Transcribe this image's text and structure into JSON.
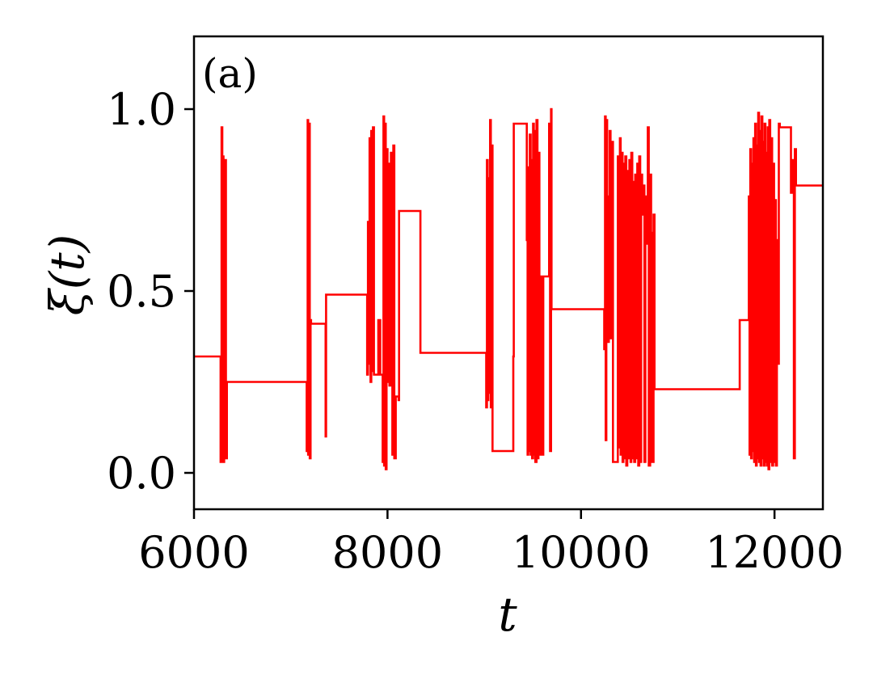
{
  "chart_data": {
    "type": "line",
    "panel_label": "(a)",
    "xlabel": "t",
    "ylabel": "ξ(t)",
    "xlim": [
      6000,
      12500
    ],
    "ylim": [
      -0.1,
      1.2
    ],
    "x_ticks": [
      6000,
      8000,
      10000,
      12000
    ],
    "x_tick_labels": [
      "6000",
      "8000",
      "10000",
      "12000"
    ],
    "y_ticks": [
      0.0,
      0.5,
      1.0
    ],
    "y_tick_labels": [
      "0.0",
      "0.5",
      "1.0"
    ],
    "grid": false,
    "series": [
      {
        "color": "#ff0000",
        "step": true,
        "x": [
          6000,
          6275,
          6285,
          6292,
          6300,
          6305,
          6312,
          6318,
          6325,
          6330,
          6340,
          7165,
          7175,
          7180,
          7190,
          7196,
          7205,
          7210,
          7360,
          7365,
          7790,
          7798,
          7805,
          7815,
          7825,
          7832,
          7842,
          7850,
          7860,
          7875,
          7905,
          7925,
          7950,
          7958,
          7965,
          7975,
          7982,
          7990,
          8000,
          8010,
          8020,
          8035,
          8050,
          8060,
          8070,
          8085,
          8090,
          8105,
          8115,
          8120,
          8340,
          8345,
          9020,
          9028,
          9035,
          9042,
          9050,
          9060,
          9068,
          9075,
          9085,
          9300,
          9305,
          9440,
          9448,
          9455,
          9462,
          9470,
          9480,
          9488,
          9495,
          9505,
          9512,
          9520,
          9528,
          9540,
          9550,
          9560,
          9570,
          9585,
          9600,
          9610,
          9670,
          9680,
          9690,
          9695,
          10240,
          10248,
          10255,
          10262,
          10270,
          10280,
          10288,
          10296,
          10305,
          10315,
          10330,
          10380,
          10395,
          10402,
          10410,
          10420,
          10430,
          10438,
          10448,
          10458,
          10468,
          10478,
          10490,
          10500,
          10512,
          10520,
          10530,
          10540,
          10550,
          10560,
          10570,
          10582,
          10592,
          10602,
          10612,
          10622,
          10632,
          10645,
          10655,
          10665,
          10675,
          10690,
          10700,
          10715,
          10725,
          10735,
          10750,
          10760,
          10775,
          10790,
          10805,
          10820,
          10835,
          10850,
          10862,
          10875,
          10890,
          10905,
          10920,
          10935,
          10945,
          11640,
          11650,
          11735,
          11742,
          11750,
          11758,
          11766,
          11774,
          11782,
          11790,
          11800,
          11808,
          11816,
          11824,
          11832,
          11840,
          11848,
          11856,
          11865,
          11874,
          11882,
          11890,
          11898,
          11906,
          11914,
          11922,
          11930,
          11938,
          11946,
          11955,
          11965,
          11975,
          11985,
          11995,
          12005,
          12015,
          12025,
          12035,
          12045,
          12055,
          12070,
          12085,
          12100,
          12130,
          12150,
          12170,
          12185,
          12200,
          12210,
          12222,
          12232,
          12500
        ],
        "y": [
          0.32,
          0.03,
          0.95,
          0.04,
          0.87,
          0.03,
          0.58,
          0.05,
          0.86,
          0.04,
          0.25,
          0.06,
          0.97,
          0.05,
          0.96,
          0.04,
          0.42,
          0.41,
          0.1,
          0.49,
          0.27,
          0.69,
          0.3,
          0.92,
          0.25,
          0.94,
          0.28,
          0.95,
          0.27,
          0.27,
          0.42,
          0.27,
          0.03,
          0.98,
          0.02,
          0.96,
          0.01,
          0.89,
          0.25,
          0.85,
          0.24,
          0.88,
          0.05,
          0.9,
          0.04,
          0.21,
          0.21,
          0.21,
          0.2,
          0.72,
          0.33,
          0.33,
          0.18,
          0.86,
          0.2,
          0.81,
          0.22,
          0.97,
          0.18,
          0.9,
          0.06,
          0.32,
          0.96,
          0.64,
          0.05,
          0.84,
          0.06,
          0.93,
          0.05,
          0.86,
          0.04,
          0.96,
          0.05,
          0.94,
          0.03,
          0.97,
          0.04,
          0.88,
          0.05,
          0.54,
          0.05,
          0.54,
          0.96,
          0.06,
          1.0,
          0.45,
          0.34,
          0.98,
          0.09,
          0.97,
          0.76,
          0.36,
          0.55,
          0.94,
          0.37,
          0.91,
          0.03,
          0.87,
          0.07,
          0.92,
          0.05,
          0.88,
          0.03,
          0.85,
          0.04,
          0.87,
          0.02,
          0.83,
          0.04,
          0.86,
          0.03,
          0.88,
          0.04,
          0.8,
          0.03,
          0.82,
          0.04,
          0.85,
          0.02,
          0.87,
          0.03,
          0.82,
          0.71,
          0.79,
          0.03,
          0.76,
          0.63,
          0.95,
          0.02,
          0.82,
          0.66,
          0.03,
          0.71,
          0.23,
          0.23,
          0.23,
          0.23,
          0.23,
          0.23,
          0.23,
          0.23,
          0.23,
          0.23,
          0.23,
          0.23,
          0.23,
          0.23,
          0.42,
          0.42,
          0.76,
          0.05,
          0.89,
          0.04,
          0.85,
          0.06,
          0.92,
          0.03,
          0.96,
          0.02,
          0.9,
          0.04,
          0.99,
          0.03,
          0.94,
          0.02,
          0.98,
          0.04,
          0.91,
          0.02,
          0.96,
          0.03,
          0.88,
          0.02,
          0.95,
          0.01,
          0.97,
          0.03,
          0.92,
          0.02,
          0.85,
          0.03,
          0.75,
          0.02,
          0.64,
          0.3,
          0.96,
          0.95,
          0.95,
          0.95,
          0.95,
          0.95,
          0.95,
          0.77,
          0.86,
          0.04,
          0.89,
          0.79,
          0.79,
          0.79
        ]
      }
    ]
  }
}
